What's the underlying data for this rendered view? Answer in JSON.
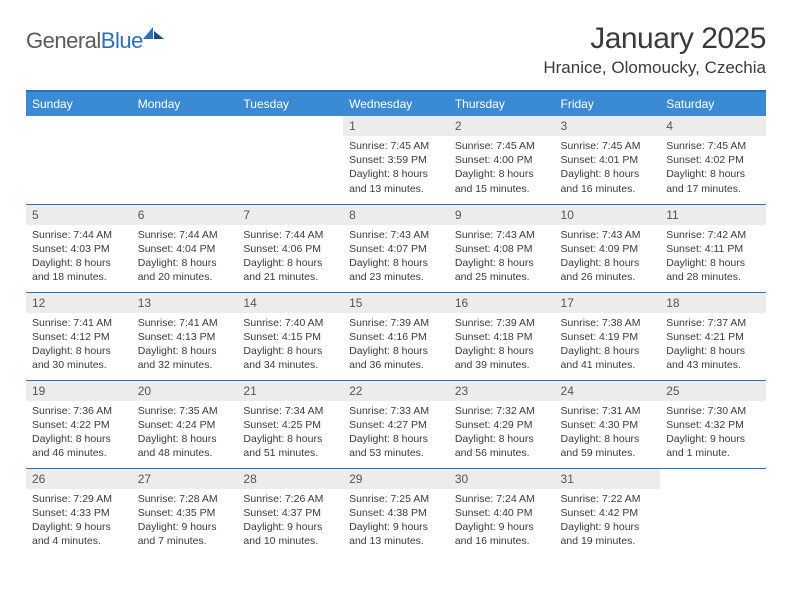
{
  "logo": {
    "word1": "General",
    "word2": "Blue"
  },
  "title": "January 2025",
  "location": "Hranice, Olomoucky, Czechia",
  "colors": {
    "header_bg": "#3b8bd4",
    "header_fg": "#ffffff",
    "rule": "#2d6fb5",
    "daynum_bg": "#ececec",
    "text": "#3a3a3a"
  },
  "weekdays": [
    "Sunday",
    "Monday",
    "Tuesday",
    "Wednesday",
    "Thursday",
    "Friday",
    "Saturday"
  ],
  "weeks": [
    [
      null,
      null,
      null,
      {
        "n": "1",
        "sr": "7:45 AM",
        "ss": "3:59 PM",
        "dl": "8 hours and 13 minutes."
      },
      {
        "n": "2",
        "sr": "7:45 AM",
        "ss": "4:00 PM",
        "dl": "8 hours and 15 minutes."
      },
      {
        "n": "3",
        "sr": "7:45 AM",
        "ss": "4:01 PM",
        "dl": "8 hours and 16 minutes."
      },
      {
        "n": "4",
        "sr": "7:45 AM",
        "ss": "4:02 PM",
        "dl": "8 hours and 17 minutes."
      }
    ],
    [
      {
        "n": "5",
        "sr": "7:44 AM",
        "ss": "4:03 PM",
        "dl": "8 hours and 18 minutes."
      },
      {
        "n": "6",
        "sr": "7:44 AM",
        "ss": "4:04 PM",
        "dl": "8 hours and 20 minutes."
      },
      {
        "n": "7",
        "sr": "7:44 AM",
        "ss": "4:06 PM",
        "dl": "8 hours and 21 minutes."
      },
      {
        "n": "8",
        "sr": "7:43 AM",
        "ss": "4:07 PM",
        "dl": "8 hours and 23 minutes."
      },
      {
        "n": "9",
        "sr": "7:43 AM",
        "ss": "4:08 PM",
        "dl": "8 hours and 25 minutes."
      },
      {
        "n": "10",
        "sr": "7:43 AM",
        "ss": "4:09 PM",
        "dl": "8 hours and 26 minutes."
      },
      {
        "n": "11",
        "sr": "7:42 AM",
        "ss": "4:11 PM",
        "dl": "8 hours and 28 minutes."
      }
    ],
    [
      {
        "n": "12",
        "sr": "7:41 AM",
        "ss": "4:12 PM",
        "dl": "8 hours and 30 minutes."
      },
      {
        "n": "13",
        "sr": "7:41 AM",
        "ss": "4:13 PM",
        "dl": "8 hours and 32 minutes."
      },
      {
        "n": "14",
        "sr": "7:40 AM",
        "ss": "4:15 PM",
        "dl": "8 hours and 34 minutes."
      },
      {
        "n": "15",
        "sr": "7:39 AM",
        "ss": "4:16 PM",
        "dl": "8 hours and 36 minutes."
      },
      {
        "n": "16",
        "sr": "7:39 AM",
        "ss": "4:18 PM",
        "dl": "8 hours and 39 minutes."
      },
      {
        "n": "17",
        "sr": "7:38 AM",
        "ss": "4:19 PM",
        "dl": "8 hours and 41 minutes."
      },
      {
        "n": "18",
        "sr": "7:37 AM",
        "ss": "4:21 PM",
        "dl": "8 hours and 43 minutes."
      }
    ],
    [
      {
        "n": "19",
        "sr": "7:36 AM",
        "ss": "4:22 PM",
        "dl": "8 hours and 46 minutes."
      },
      {
        "n": "20",
        "sr": "7:35 AM",
        "ss": "4:24 PM",
        "dl": "8 hours and 48 minutes."
      },
      {
        "n": "21",
        "sr": "7:34 AM",
        "ss": "4:25 PM",
        "dl": "8 hours and 51 minutes."
      },
      {
        "n": "22",
        "sr": "7:33 AM",
        "ss": "4:27 PM",
        "dl": "8 hours and 53 minutes."
      },
      {
        "n": "23",
        "sr": "7:32 AM",
        "ss": "4:29 PM",
        "dl": "8 hours and 56 minutes."
      },
      {
        "n": "24",
        "sr": "7:31 AM",
        "ss": "4:30 PM",
        "dl": "8 hours and 59 minutes."
      },
      {
        "n": "25",
        "sr": "7:30 AM",
        "ss": "4:32 PM",
        "dl": "9 hours and 1 minute."
      }
    ],
    [
      {
        "n": "26",
        "sr": "7:29 AM",
        "ss": "4:33 PM",
        "dl": "9 hours and 4 minutes."
      },
      {
        "n": "27",
        "sr": "7:28 AM",
        "ss": "4:35 PM",
        "dl": "9 hours and 7 minutes."
      },
      {
        "n": "28",
        "sr": "7:26 AM",
        "ss": "4:37 PM",
        "dl": "9 hours and 10 minutes."
      },
      {
        "n": "29",
        "sr": "7:25 AM",
        "ss": "4:38 PM",
        "dl": "9 hours and 13 minutes."
      },
      {
        "n": "30",
        "sr": "7:24 AM",
        "ss": "4:40 PM",
        "dl": "9 hours and 16 minutes."
      },
      {
        "n": "31",
        "sr": "7:22 AM",
        "ss": "4:42 PM",
        "dl": "9 hours and 19 minutes."
      },
      null
    ]
  ],
  "labels": {
    "sunrise": "Sunrise:",
    "sunset": "Sunset:",
    "daylight": "Daylight:"
  }
}
